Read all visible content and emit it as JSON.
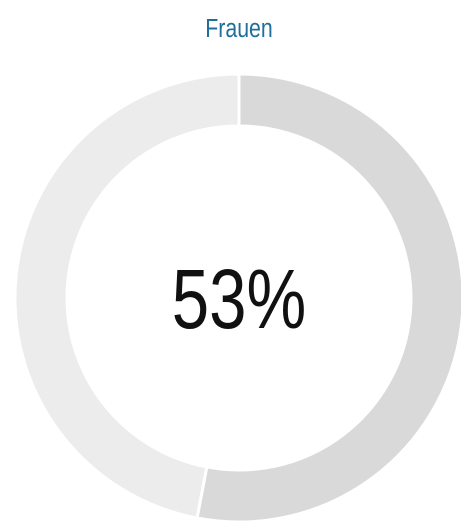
{
  "chart_data": {
    "type": "donut",
    "title": "Frauen",
    "values": [
      53,
      47
    ],
    "value_labels": [
      "53%",
      null
    ],
    "colors": [
      "#d9d9d9",
      "#ececec"
    ]
  }
}
